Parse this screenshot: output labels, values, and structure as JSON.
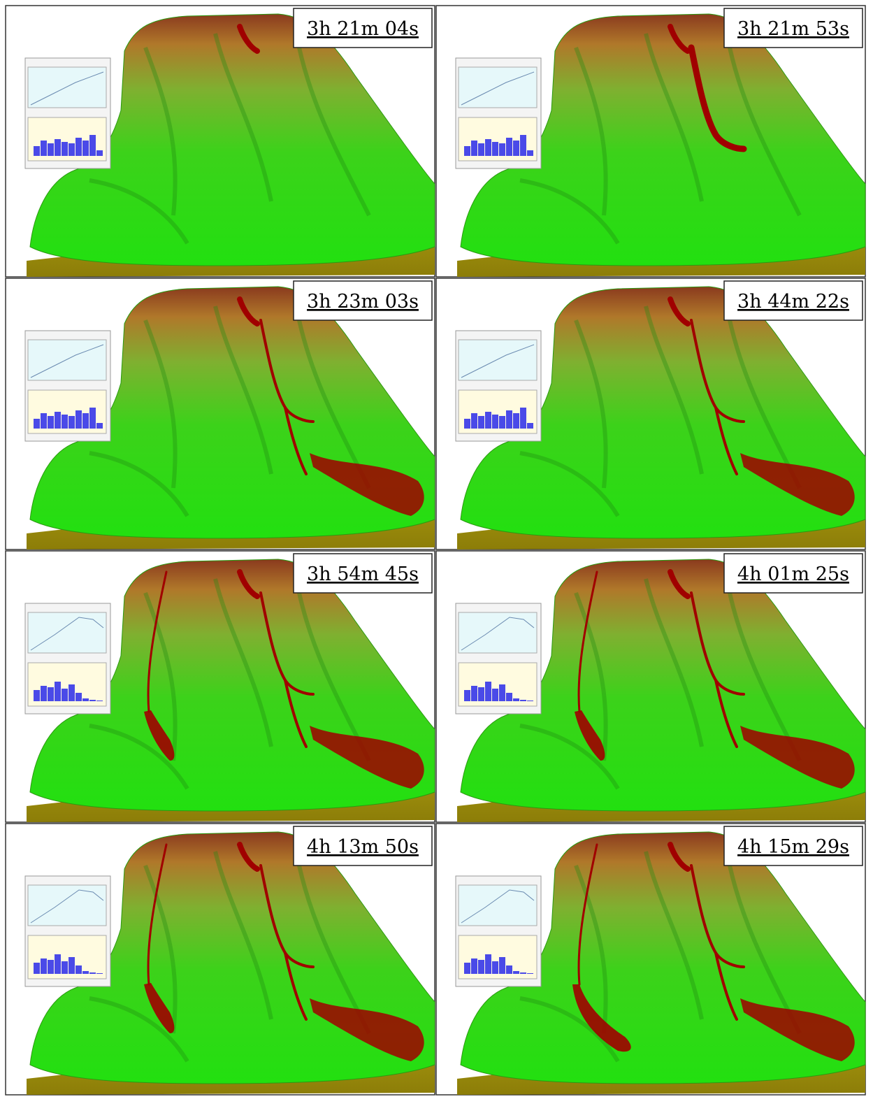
{
  "panels": [
    {
      "time": "3h 21m 04s"
    },
    {
      "time": "3h 21m 53s"
    },
    {
      "time": "3h 23m 03s"
    },
    {
      "time": "3h 44m 22s"
    },
    {
      "time": "3h 54m 45s"
    },
    {
      "time": "4h 01m 25s"
    },
    {
      "time": "4h 13m 50s"
    },
    {
      "time": "4h 15m 29s"
    }
  ]
}
